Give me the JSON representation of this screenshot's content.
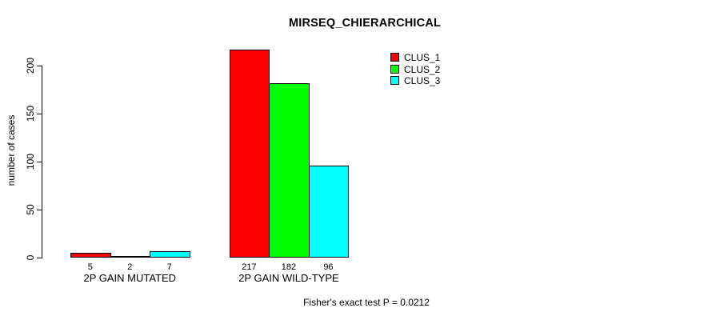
{
  "title": "MIRSEQ_CHIERARCHICAL",
  "chart_data": {
    "type": "bar",
    "title": "MIRSEQ_CHIERARCHICAL",
    "xlabel": "",
    "ylabel": "number of cases",
    "categories": [
      "2P GAIN MUTATED",
      "2P GAIN WILD-TYPE"
    ],
    "series": [
      {
        "name": "CLUS_1",
        "color": "#ff0000",
        "values": [
          5,
          217
        ]
      },
      {
        "name": "CLUS_2",
        "color": "#00ff00",
        "values": [
          2,
          182
        ]
      },
      {
        "name": "CLUS_3",
        "color": "#00ffff",
        "values": [
          7,
          96
        ]
      }
    ],
    "bar_value_labels": [
      [
        "5",
        "2",
        "7"
      ],
      [
        "217",
        "182",
        "96"
      ]
    ],
    "yticks": [
      0,
      50,
      100,
      150,
      200
    ],
    "ylim": [
      0,
      220
    ],
    "grid": false,
    "legend_position": "top-right",
    "annotation": "Fisher's exact test P = 0.0212"
  },
  "colors": {
    "background": "#ffffff",
    "text": "#000000",
    "axis": "#000000",
    "bar_border": "#000000"
  }
}
